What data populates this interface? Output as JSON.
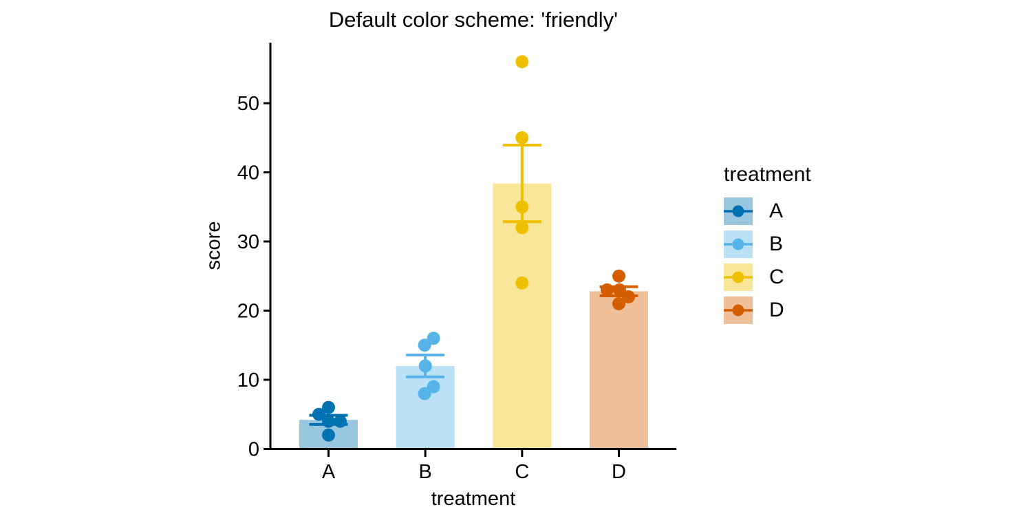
{
  "chart_data": {
    "type": "bar",
    "title": "Default color scheme: 'friendly'",
    "xlabel": "treatment",
    "ylabel": "score",
    "categories": [
      "A",
      "B",
      "C",
      "D"
    ],
    "series": [
      {
        "name": "A",
        "color": "#0072B2",
        "mean": 4.2,
        "sem": 0.66,
        "points": [
          6,
          5,
          4,
          4,
          2
        ],
        "jitter": [
          0,
          -14,
          0,
          17,
          0
        ]
      },
      {
        "name": "B",
        "color": "#56B4E9",
        "mean": 12.0,
        "sem": 1.58,
        "points": [
          15,
          16,
          12,
          9,
          8
        ],
        "jitter": [
          -1,
          12,
          0,
          12,
          -1
        ]
      },
      {
        "name": "C",
        "color": "#EFC000",
        "mean": 38.4,
        "sem": 5.54,
        "points": [
          56,
          45,
          35,
          32,
          24
        ],
        "jitter": [
          0,
          0,
          0,
          0,
          0
        ]
      },
      {
        "name": "D",
        "color": "#D55E00",
        "mean": 22.8,
        "sem": 0.66,
        "points": [
          25,
          23,
          23,
          22,
          21
        ],
        "jitter": [
          0,
          -17,
          1,
          14,
          0
        ]
      }
    ],
    "bar_alpha": 0.4,
    "yticks": [
      0,
      10,
      20,
      30,
      40,
      50
    ],
    "ylim": [
      0,
      58.8
    ],
    "grid": false,
    "legend_position": "right"
  },
  "legend": {
    "title": "treatment"
  }
}
